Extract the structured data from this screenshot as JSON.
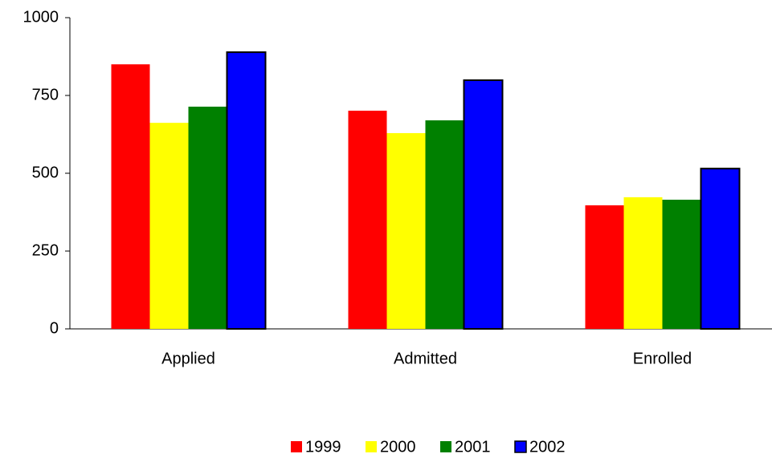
{
  "chart_data": {
    "type": "bar",
    "categories": [
      "Applied",
      "Admitted",
      "Enrolled"
    ],
    "series": [
      {
        "name": "1999",
        "color": "#ff0000",
        "values": [
          850,
          701,
          397
        ]
      },
      {
        "name": "2000",
        "color": "#ffff00",
        "values": [
          662,
          629,
          423
        ]
      },
      {
        "name": "2001",
        "color": "#008000",
        "values": [
          714,
          670,
          415
        ]
      },
      {
        "name": "2002",
        "color": "#0000ff",
        "values": [
          889,
          799,
          515
        ]
      }
    ],
    "ylim": [
      0,
      1000
    ],
    "yticks": [
      0,
      250,
      500,
      750,
      1000
    ],
    "legend": "bottom"
  }
}
